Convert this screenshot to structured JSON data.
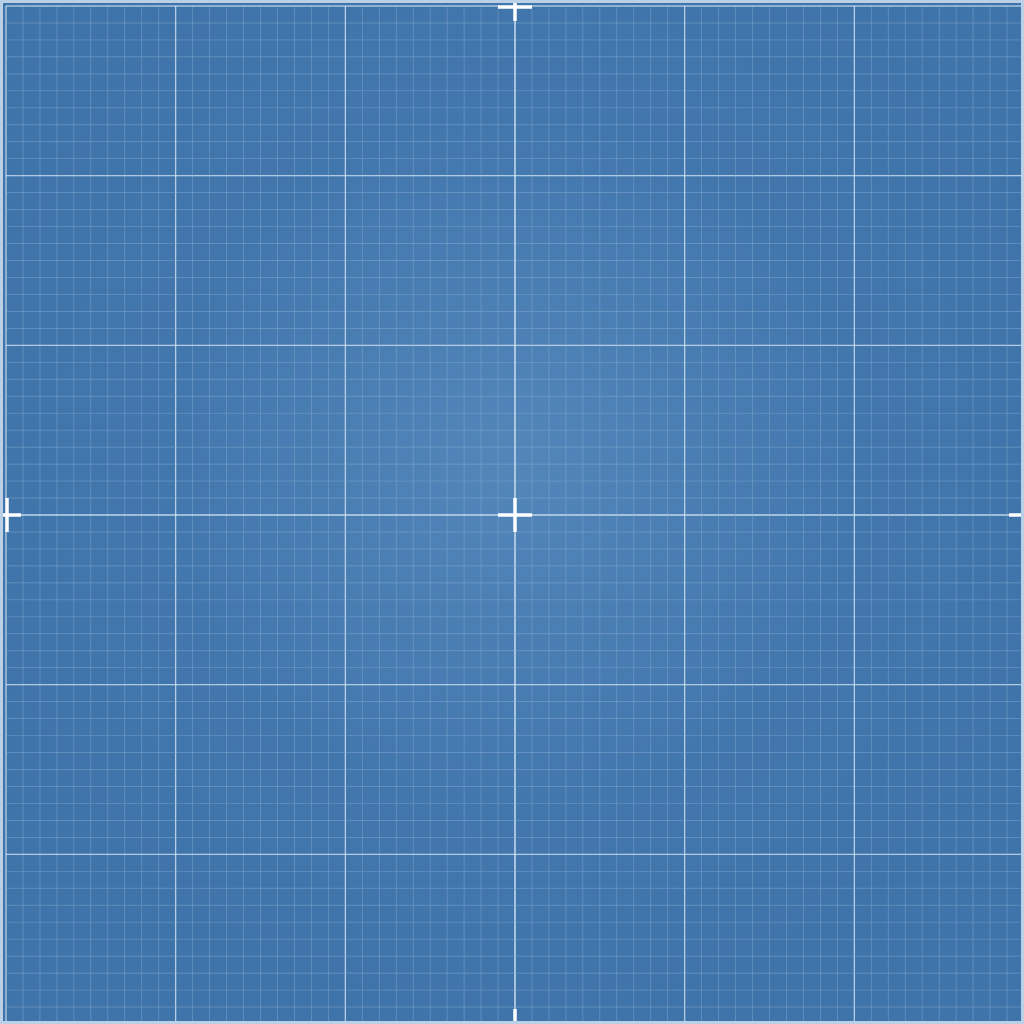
{
  "canvas": {
    "background_color": "#3f74aa",
    "border_color": "#b9d0e6",
    "minor_line_color": "#8fb2d6",
    "major_line_color": "#d6e6f5",
    "marker_color": "#ffffff"
  },
  "grid": {
    "minor_divisions_per_major": 10,
    "major_divisions": 6,
    "center_crosshair": true,
    "edge_markers": [
      "top",
      "bottom",
      "left",
      "right"
    ]
  }
}
